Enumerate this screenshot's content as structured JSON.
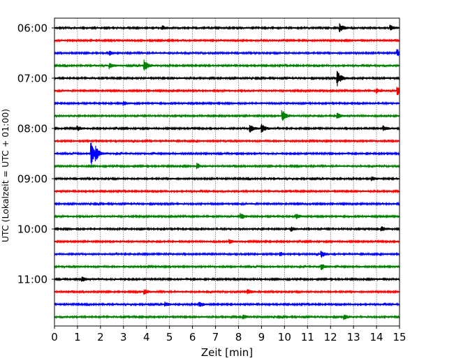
{
  "chart_data": {
    "type": "line",
    "title": "",
    "xlabel": "Zeit  [min]",
    "ylabel": "UTC (Lokalzeit = UTC + 01:00)",
    "xlim": [
      0,
      15
    ],
    "x_ticks": [
      "0",
      "1",
      "2",
      "3",
      "4",
      "5",
      "6",
      "7",
      "8",
      "9",
      "10",
      "11",
      "12",
      "13",
      "14",
      "15"
    ],
    "y_tick_labels": [
      "06:00",
      "07:00",
      "08:00",
      "09:00",
      "10:00",
      "11:00"
    ],
    "y_tick_rows": [
      0,
      4,
      8,
      12,
      16,
      20
    ],
    "grid_x": true,
    "trace_count": 24,
    "trace_interval_min": 15,
    "trace_colors": [
      "#000000",
      "#ff0000",
      "#0000ff",
      "#008000"
    ],
    "events": [
      {
        "trace": 0,
        "x": 12.4,
        "amp": 1.6
      },
      {
        "trace": 0,
        "x": 4.7,
        "amp": 0.8
      },
      {
        "trace": 0,
        "x": 14.6,
        "amp": 0.9
      },
      {
        "trace": 2,
        "x": 2.4,
        "amp": 0.8
      },
      {
        "trace": 2,
        "x": 14.9,
        "amp": 1.3
      },
      {
        "trace": 3,
        "x": 3.9,
        "amp": 1.9
      },
      {
        "trace": 3,
        "x": 2.4,
        "amp": 0.8
      },
      {
        "trace": 4,
        "x": 12.3,
        "amp": 2.6
      },
      {
        "trace": 5,
        "x": 14.9,
        "amp": 1.6
      },
      {
        "trace": 5,
        "x": 14.0,
        "amp": 0.8
      },
      {
        "trace": 6,
        "x": 3.0,
        "amp": 0.7
      },
      {
        "trace": 7,
        "x": 9.9,
        "amp": 2.1
      },
      {
        "trace": 7,
        "x": 12.3,
        "amp": 0.9
      },
      {
        "trace": 8,
        "x": 9.0,
        "amp": 1.5
      },
      {
        "trace": 8,
        "x": 8.5,
        "amp": 1.3
      },
      {
        "trace": 8,
        "x": 14.3,
        "amp": 0.8
      },
      {
        "trace": 8,
        "x": 1.0,
        "amp": 0.8
      },
      {
        "trace": 10,
        "x": 1.6,
        "amp": 4.0
      },
      {
        "trace": 10,
        "x": 1.8,
        "amp": 1.5
      },
      {
        "trace": 11,
        "x": 6.2,
        "amp": 0.9
      },
      {
        "trace": 12,
        "x": 13.8,
        "amp": 0.8
      },
      {
        "trace": 15,
        "x": 8.1,
        "amp": 1.0
      },
      {
        "trace": 15,
        "x": 10.5,
        "amp": 0.9
      },
      {
        "trace": 16,
        "x": 14.2,
        "amp": 0.9
      },
      {
        "trace": 16,
        "x": 10.3,
        "amp": 0.7
      },
      {
        "trace": 17,
        "x": 7.6,
        "amp": 0.8
      },
      {
        "trace": 18,
        "x": 9.8,
        "amp": 0.7
      },
      {
        "trace": 18,
        "x": 11.6,
        "amp": 1.1
      },
      {
        "trace": 19,
        "x": 11.6,
        "amp": 1.1
      },
      {
        "trace": 20,
        "x": 1.2,
        "amp": 0.8
      },
      {
        "trace": 21,
        "x": 3.9,
        "amp": 0.9
      },
      {
        "trace": 21,
        "x": 8.4,
        "amp": 0.8
      },
      {
        "trace": 22,
        "x": 6.3,
        "amp": 0.9
      },
      {
        "trace": 22,
        "x": 4.8,
        "amp": 0.7
      },
      {
        "trace": 23,
        "x": 12.6,
        "amp": 0.9
      },
      {
        "trace": 23,
        "x": 8.2,
        "amp": 0.7
      }
    ]
  }
}
